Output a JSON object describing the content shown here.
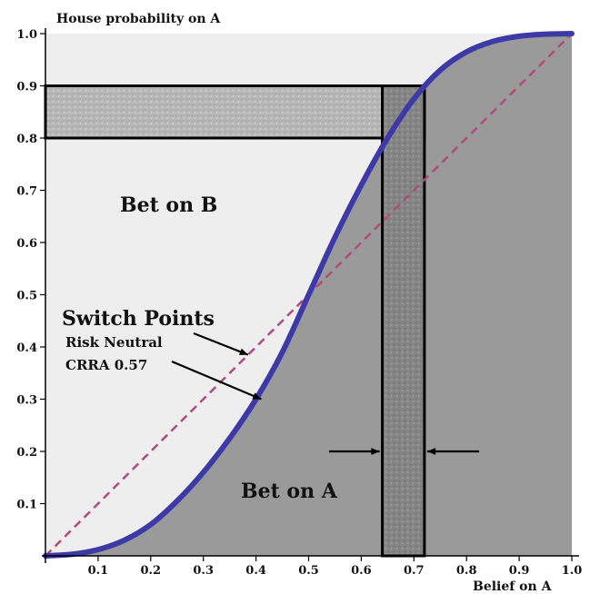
{
  "chart_data": {
    "type": "line",
    "xlabel": "Belief on A",
    "ylabel": "House probability on A",
    "xlim": [
      0,
      1
    ],
    "ylim": [
      0,
      1
    ],
    "x_ticks": [
      "0.1",
      "0.2",
      "0.3",
      "0.4",
      "0.5",
      "0.6",
      "0.7",
      "0.8",
      "0.9",
      "1.0"
    ],
    "y_ticks": [
      "0.1",
      "0.2",
      "0.3",
      "0.4",
      "0.5",
      "0.6",
      "0.7",
      "0.8",
      "0.9",
      "1.0"
    ],
    "series": [
      {
        "name": "Risk Neutral",
        "style": "dashed",
        "color": "#b04a7a",
        "x": [
          0,
          1
        ],
        "y": [
          0,
          1
        ]
      },
      {
        "name": "CRRA 0.57",
        "style": "solid",
        "color": "#3d3aa8",
        "x": [
          0,
          0.05,
          0.1,
          0.15,
          0.2,
          0.25,
          0.3,
          0.35,
          0.4,
          0.45,
          0.5,
          0.55,
          0.6,
          0.65,
          0.7,
          0.75,
          0.8,
          0.85,
          0.9,
          0.95,
          1.0
        ],
        "y": [
          0,
          0.003,
          0.012,
          0.03,
          0.06,
          0.105,
          0.16,
          0.225,
          0.3,
          0.39,
          0.5,
          0.61,
          0.71,
          0.8,
          0.875,
          0.93,
          0.965,
          0.985,
          0.995,
          0.999,
          1.0
        ]
      }
    ],
    "regions": [
      {
        "label": "Bet on B",
        "color": "#eeeeee"
      },
      {
        "label": "Bet on A",
        "color": "#9a9a9a"
      }
    ],
    "highlight_bands": {
      "horizontal": {
        "y_from": 0.8,
        "y_to": 0.9,
        "x_from": 0,
        "x_to": 0.72
      },
      "vertical": {
        "x_from": 0.64,
        "x_to": 0.72,
        "y_from": 0,
        "y_to": 0.9
      }
    },
    "annotation": {
      "title": "Switch Points",
      "items": [
        "Risk Neutral",
        "CRRA 0.57"
      ]
    },
    "grid": false
  }
}
